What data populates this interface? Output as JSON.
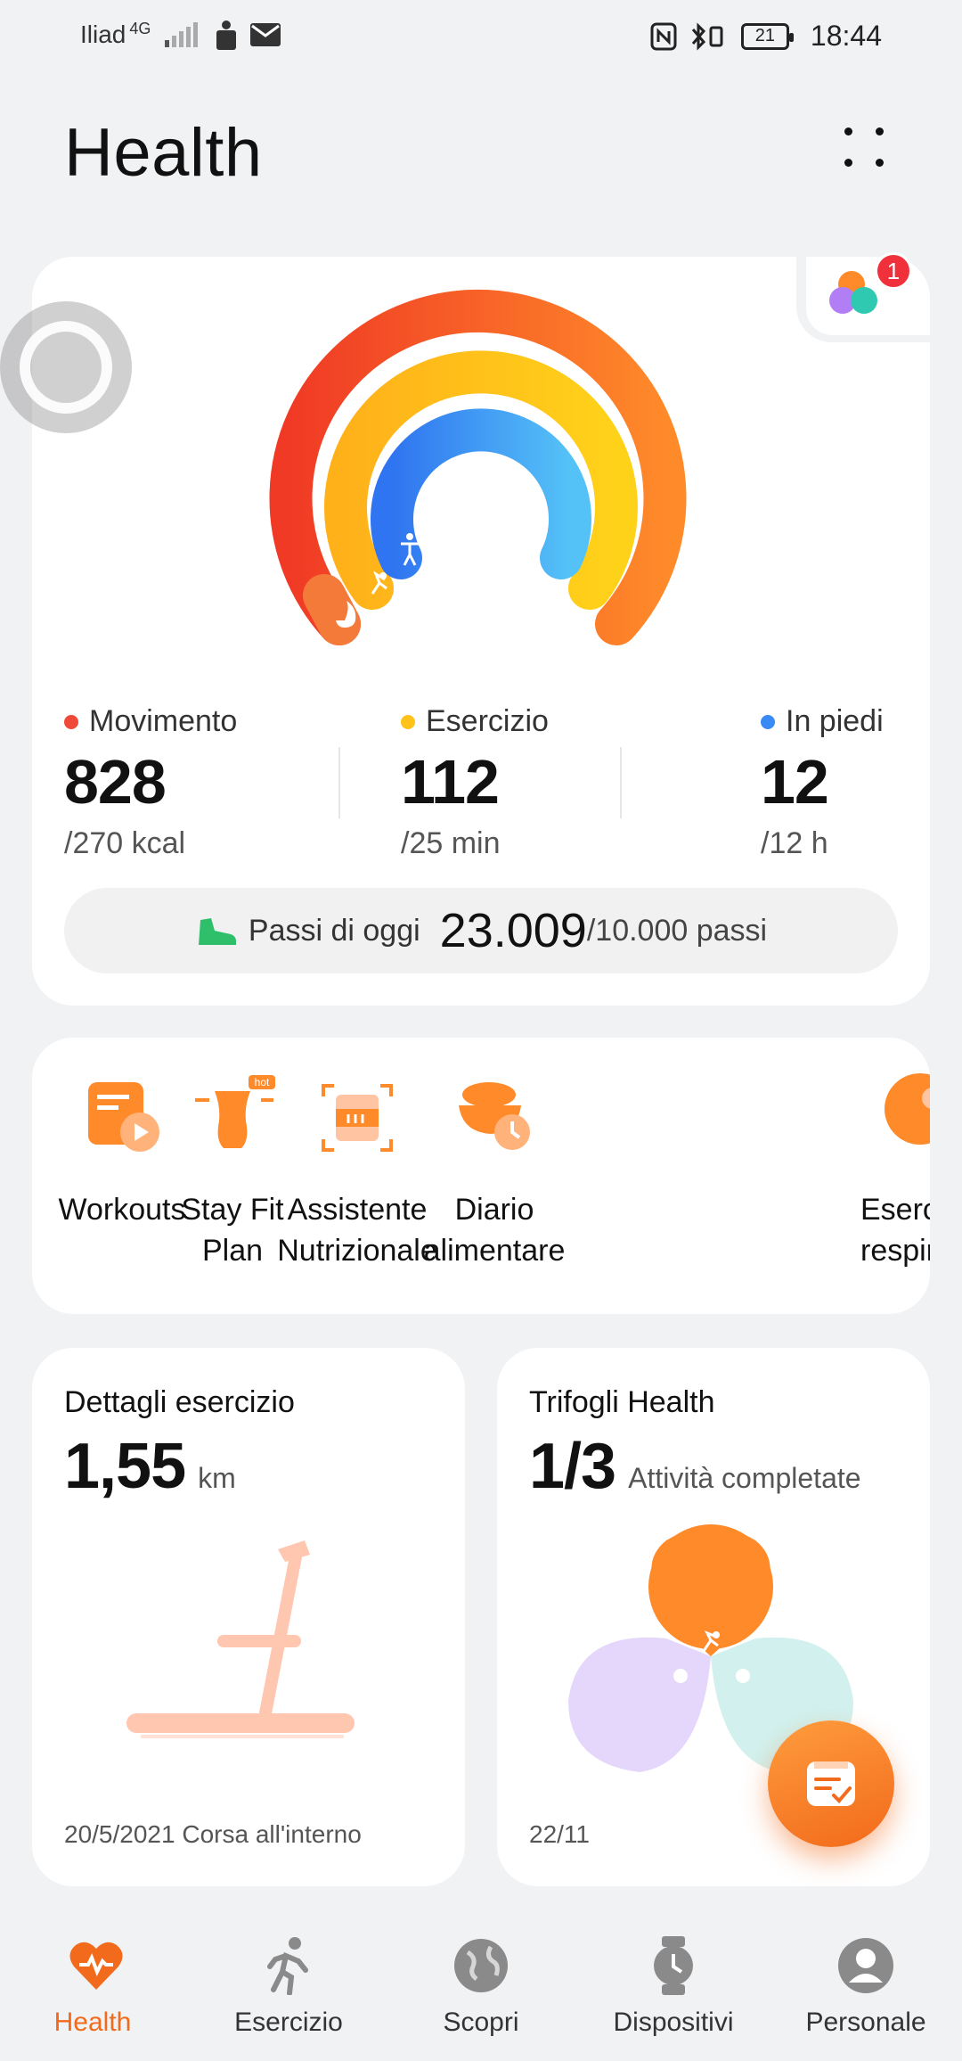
{
  "status_bar": {
    "carrier": "Iliad",
    "network": "4G",
    "battery": "21",
    "time": "18:44"
  },
  "header": {
    "title": "Health"
  },
  "activity": {
    "trefoil_notification": "1",
    "move": {
      "label": "Movimento",
      "value": "828",
      "goal": "/270 kcal",
      "color": "#f0493a"
    },
    "exercise": {
      "label": "Esercizio",
      "value": "112",
      "goal": "/25 min",
      "color": "#ffc21a"
    },
    "stand": {
      "label": "In piedi",
      "value": "12",
      "goal": "/12 h",
      "color": "#3a8af5"
    },
    "steps": {
      "label": "Passi di oggi",
      "value": "23.009",
      "goal": "/10.000 passi"
    }
  },
  "shortcuts": [
    {
      "label_line1": "Workouts",
      "label_line2": "",
      "icon": "workouts-icon"
    },
    {
      "label_line1": "Stay Fit",
      "label_line2": "Plan",
      "icon": "stay-fit-icon",
      "badge": "hot"
    },
    {
      "label_line1": "Assistente",
      "label_line2": "Nutrizionale",
      "icon": "nutrition-scan-icon"
    },
    {
      "label_line1": "Diario",
      "label_line2": "alimentare",
      "icon": "food-diary-icon"
    },
    {
      "label_line1": "Eserc",
      "label_line2": "respira",
      "icon": "breathing-icon"
    }
  ],
  "exercise_details": {
    "title": "Dettagli esercizio",
    "value": "1,55",
    "unit": "km",
    "footer": "20/5/2021  Corsa all'interno"
  },
  "trefoil": {
    "title": "Trifogli Health",
    "value": "1/3",
    "unit": "Attività completate",
    "footer": "22/11"
  },
  "nav": [
    {
      "label": "Health",
      "icon": "heart-icon",
      "active": true
    },
    {
      "label": "Esercizio",
      "icon": "running-icon",
      "active": false
    },
    {
      "label": "Scopri",
      "icon": "globe-icon",
      "active": false
    },
    {
      "label": "Dispositivi",
      "icon": "watch-icon",
      "active": false
    },
    {
      "label": "Personale",
      "icon": "person-icon",
      "active": false
    }
  ],
  "colors": {
    "accent": "#f26a1b",
    "ring_outer_start": "#f03a25",
    "ring_outer_end": "#ff8a2a",
    "ring_middle": "#ffc21a",
    "ring_inner": "#3a8af5"
  }
}
